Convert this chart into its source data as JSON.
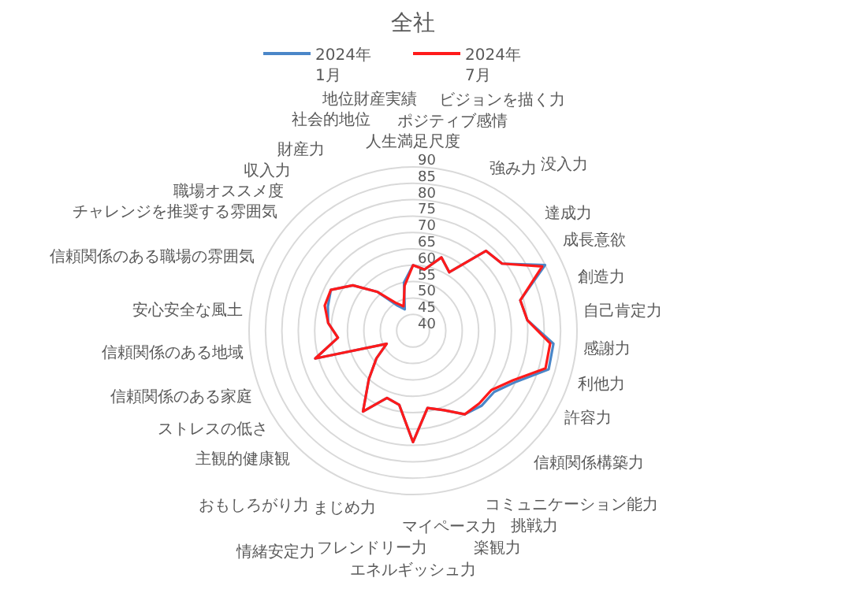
{
  "chart_data": {
    "type": "radar",
    "title": "全社",
    "categories": [
      "人生満足尺度",
      "ポジティブ感情",
      "ビジョンを描く力",
      "強み力",
      "没入力",
      "達成力",
      "成長意欲",
      "創造力",
      "自己肯定力",
      "感謝力",
      "利他力",
      "許容力",
      "信頼関係構築力",
      "コミュニケーション能力",
      "挑戦力",
      "楽観力",
      "マイペース力",
      "エネルギッシュ力",
      "フレンドリー力",
      "まじめ力",
      "情緒安定力",
      "おもしろがり力",
      "主観的健康観",
      "ストレスの低さ",
      "信頼関係のある家庭",
      "信頼関係のある地域",
      "安心安全な風土",
      "信頼関係のある職場の雰囲気",
      "チャレンジを推奨する雰囲気",
      "職場オススメ度",
      "収入力",
      "財産力",
      "社会的地位",
      "地位財産実績"
    ],
    "series": [
      {
        "name": "2024年 1月",
        "color": "#4a86c8",
        "values": [
          60,
          59,
          64,
          61,
          73,
          74,
          85,
          74,
          75,
          83,
          83,
          75,
          71,
          71,
          70,
          66,
          64,
          74,
          63,
          62,
          69,
          60,
          54,
          49,
          71,
          63,
          66,
          67,
          68,
          63,
          56,
          49,
          47,
          55
        ]
      },
      {
        "name": "2024年 7月",
        "color": "#ff1a1a",
        "values": [
          60,
          59,
          64,
          61,
          73,
          74,
          84,
          74,
          75,
          82,
          82,
          74,
          70,
          70,
          70,
          66,
          64,
          74,
          63,
          62,
          69,
          60,
          54,
          49,
          71,
          63,
          66,
          68,
          68,
          63,
          56,
          50,
          48,
          54
        ]
      }
    ],
    "ylim": [
      40,
      90
    ],
    "yticks": [
      40,
      45,
      50,
      55,
      60,
      65,
      70,
      75,
      80,
      85,
      90
    ],
    "grid": true,
    "legend": "top"
  }
}
